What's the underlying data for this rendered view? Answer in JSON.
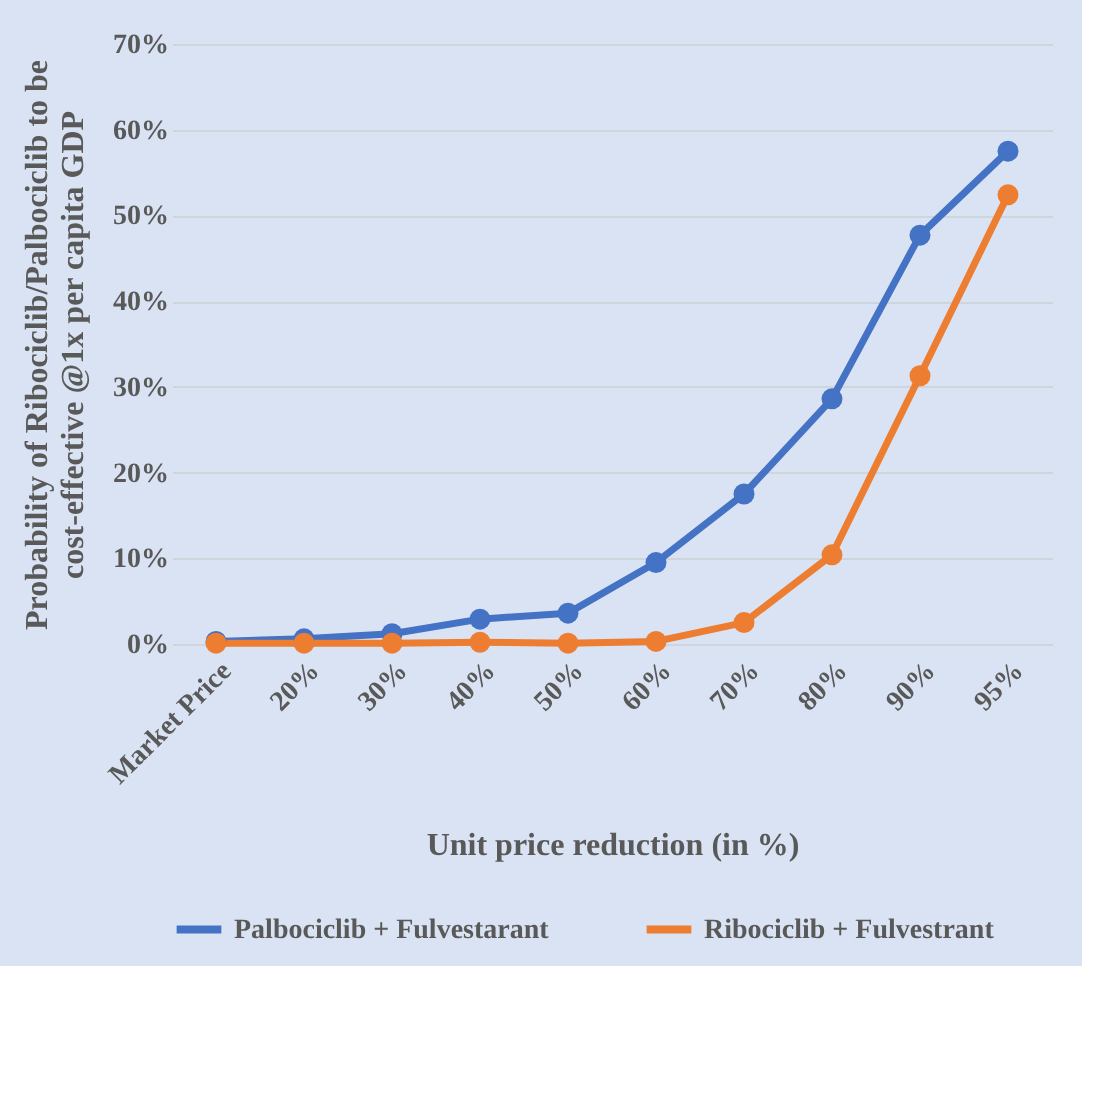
{
  "chart_data": {
    "type": "line",
    "xlabel": "Unit price reduction (in %)",
    "ylabel": "Probability of Ribociclib/Palbociclib to be\ncost-effective @1x per capita GDP",
    "categories": [
      "Market Price",
      "20%",
      "30%",
      "40%",
      "50%",
      "60%",
      "70%",
      "80%",
      "90%",
      "95%"
    ],
    "series": [
      {
        "name": "Palbociclib + Fulvestarant",
        "color": "#4472c4",
        "values": [
          0.3,
          0.6,
          1.2,
          2.9,
          3.6,
          9.5,
          17.5,
          28.6,
          47.7,
          57.5
        ]
      },
      {
        "name": "Ribociclib + Fulvestrant",
        "color": "#ed7d31",
        "values": [
          0.1,
          0.1,
          0.1,
          0.2,
          0.1,
          0.3,
          2.5,
          10.4,
          31.3,
          52.4
        ]
      }
    ],
    "ylim": [
      0,
      70
    ],
    "yticks": [
      {
        "value": 0,
        "label": "0%"
      },
      {
        "value": 10,
        "label": "10%"
      },
      {
        "value": 20,
        "label": "20%"
      },
      {
        "value": 30,
        "label": "30%"
      },
      {
        "value": 40,
        "label": "40%"
      },
      {
        "value": 50,
        "label": "50%"
      },
      {
        "value": 60,
        "label": "60%"
      },
      {
        "value": 70,
        "label": "70%"
      }
    ],
    "grid": "y",
    "legend": "bottom",
    "marker": "circle",
    "line_style": "solid"
  }
}
